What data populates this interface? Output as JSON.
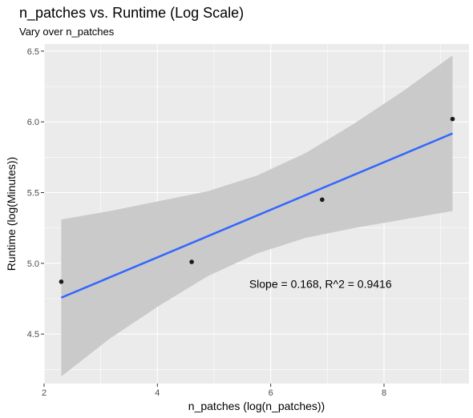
{
  "chart_data": {
    "type": "scatter",
    "title": "n_patches vs. Runtime (Log Scale)",
    "subtitle": "Vary over n_patches",
    "xlabel": "n_patches (log(n_patches))",
    "ylabel": "Runtime (log(Minutes))",
    "xlim": [
      2.0,
      9.5
    ],
    "ylim": [
      4.15,
      6.55
    ],
    "x_ticks": [
      2,
      4,
      6,
      8
    ],
    "y_ticks": [
      4.5,
      5.0,
      5.5,
      6.0,
      6.5
    ],
    "x_tick_labels": [
      "2",
      "4",
      "6",
      "8"
    ],
    "y_tick_labels": [
      "4.5",
      "5.0",
      "5.5",
      "6.0",
      "6.5"
    ],
    "grid": true,
    "points": [
      {
        "x": 2.303,
        "y": 4.87
      },
      {
        "x": 4.605,
        "y": 5.01
      },
      {
        "x": 6.908,
        "y": 5.45
      },
      {
        "x": 9.21,
        "y": 6.02
      }
    ],
    "fit_line": {
      "x": [
        2.303,
        9.21
      ],
      "y": [
        4.757,
        5.918
      ]
    },
    "confidence_band": {
      "x": [
        2.303,
        3.166,
        4.03,
        4.893,
        5.757,
        6.62,
        7.483,
        8.347,
        9.21
      ],
      "lower": [
        4.2,
        4.47,
        4.7,
        4.91,
        5.07,
        5.18,
        5.25,
        5.31,
        5.37
      ],
      "upper": [
        5.31,
        5.37,
        5.44,
        5.51,
        5.62,
        5.78,
        5.99,
        6.22,
        6.47
      ]
    },
    "annotation": {
      "text": "Slope = 0.168, R^2 = 0.9416",
      "x": 5.62,
      "y": 4.855
    },
    "colors": {
      "panel_background": "#ebebeb",
      "grid": "#ffffff",
      "fit_line": "#3366ff",
      "confidence_band": "#c8c8c8",
      "points": "#1a1a1a"
    }
  }
}
